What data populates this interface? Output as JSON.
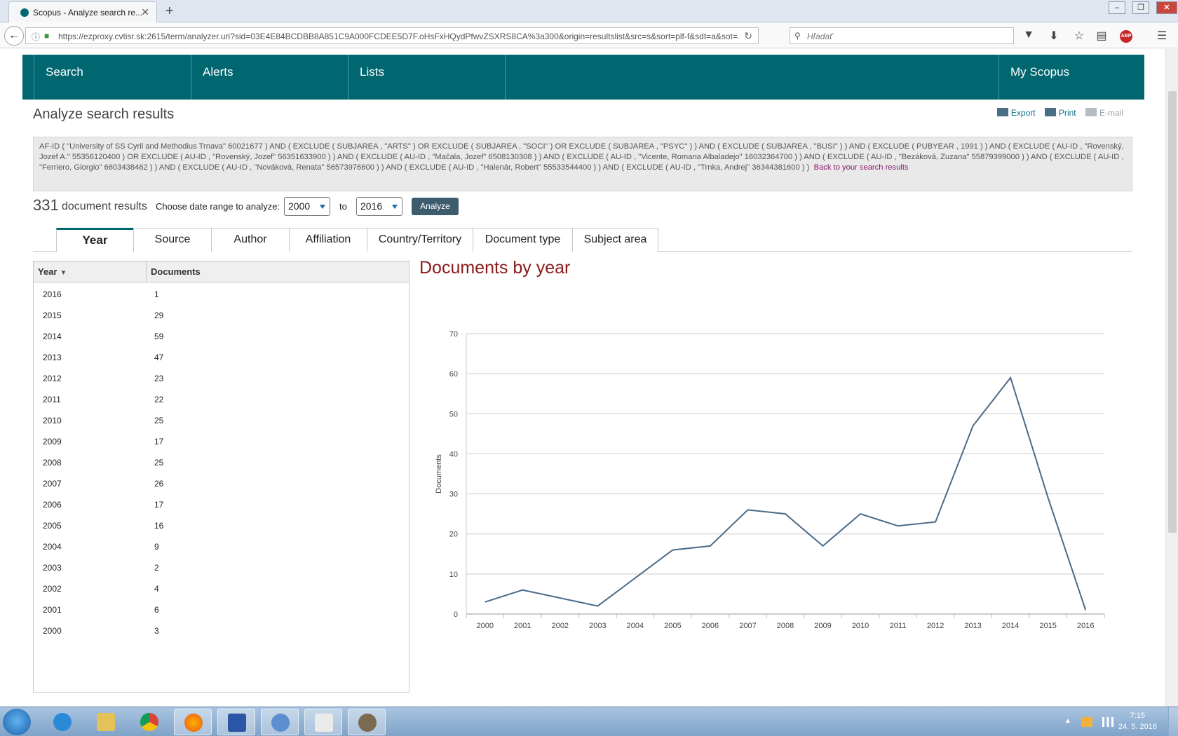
{
  "browser": {
    "tab_title": "Scopus - Analyze search re...",
    "tab_close": "✕",
    "new_tab": "+",
    "url": "https://ezproxy.cvtisr.sk:2615/term/analyzer.uri?sid=03E4E84BCDBB8A851C9A000FCDEE5D7F.oHsFxHQydPfwvZSXRS8CA%3a300&origin=resultslist&src=s&sort=plf-f&sdt=a&sot=a&se",
    "search_placeholder": "Hľadať",
    "window_controls": [
      "–",
      "❐",
      "✕"
    ]
  },
  "nav": {
    "items": [
      "Search",
      "Alerts",
      "Lists"
    ],
    "my_scopus": "My Scopus"
  },
  "page": {
    "heading": "Analyze search results",
    "actions": {
      "export": "Export",
      "print": "Print",
      "email": "E-mail"
    },
    "query_text": "AF-ID ( \"University of SS Cyril and Methodius Trnava\" 60021677 ) AND ( EXCLUDE ( SUBJAREA , \"ARTS\" ) OR EXCLUDE ( SUBJAREA , \"SOCI\" ) OR EXCLUDE ( SUBJAREA , \"PSYC\" ) ) AND ( EXCLUDE ( SUBJAREA , \"BUSI\" ) ) AND ( EXCLUDE ( PUBYEAR , 1991 ) ) AND ( EXCLUDE ( AU-ID , \"Rovenský, Jozef A.\" 55356120400 ) OR EXCLUDE ( AU-ID , \"Rovenský, Jozef\" 56351633900 ) ) AND ( EXCLUDE ( AU-ID , \"Mačala, Jozef\" 6508130308 ) ) AND ( EXCLUDE ( AU-ID , \"Vicente, Romana Albaladejo\" 16032364700 ) ) AND ( EXCLUDE ( AU-ID , \"Bezáková, Zuzana\" 55879399000 ) ) AND ( EXCLUDE ( AU-ID , \"Ferriero, Giorgio\" 6603438462 ) ) AND ( EXCLUDE ( AU-ID , \"Nováková, Renata\" 56573976600 ) ) AND ( EXCLUDE ( AU-ID , \"Halenár, Robert\" 55533544400 ) ) AND ( EXCLUDE ( AU-ID , \"Trnka, Andrej\" 36344381600 ) )",
    "back_link": "Back to your search results",
    "result_count": "331",
    "result_label": "document results",
    "range_label": "Choose date range to analyze:",
    "from_year": "2000",
    "to_label": "to",
    "to_year": "2016",
    "analyze_button": "Analyze",
    "tabs": [
      "Year",
      "Source",
      "Author",
      "Affiliation",
      "Country/Territory",
      "Document type",
      "Subject area"
    ],
    "active_tab": "Year"
  },
  "table": {
    "headers": {
      "year": "Year",
      "documents": "Documents"
    },
    "sort_icon": "sort-filter-icon",
    "rows": [
      {
        "year": "2016",
        "documents": "1"
      },
      {
        "year": "2015",
        "documents": "29"
      },
      {
        "year": "2014",
        "documents": "59"
      },
      {
        "year": "2013",
        "documents": "47"
      },
      {
        "year": "2012",
        "documents": "23"
      },
      {
        "year": "2011",
        "documents": "22"
      },
      {
        "year": "2010",
        "documents": "25"
      },
      {
        "year": "2009",
        "documents": "17"
      },
      {
        "year": "2008",
        "documents": "25"
      },
      {
        "year": "2007",
        "documents": "26"
      },
      {
        "year": "2006",
        "documents": "17"
      },
      {
        "year": "2005",
        "documents": "16"
      },
      {
        "year": "2004",
        "documents": "9"
      },
      {
        "year": "2003",
        "documents": "2"
      },
      {
        "year": "2002",
        "documents": "4"
      },
      {
        "year": "2001",
        "documents": "6"
      },
      {
        "year": "2000",
        "documents": "3"
      }
    ]
  },
  "chart_data": {
    "type": "line",
    "title": "Documents by year",
    "xlabel": "",
    "ylabel": "Documents",
    "x": [
      "2000",
      "2001",
      "2002",
      "2003",
      "2004",
      "2005",
      "2006",
      "2007",
      "2008",
      "2009",
      "2010",
      "2011",
      "2012",
      "2013",
      "2014",
      "2015",
      "2016"
    ],
    "values": [
      3,
      6,
      4,
      2,
      9,
      16,
      17,
      26,
      25,
      17,
      25,
      22,
      23,
      47,
      59,
      29,
      1
    ],
    "ylim": [
      0,
      70
    ],
    "yticks": [
      0,
      10,
      20,
      30,
      40,
      50,
      60,
      70
    ],
    "grid": true,
    "line_color": "#4a6a8a",
    "title_color": "#8b1a1a"
  },
  "taskbar": {
    "time": "7:15",
    "date": "24. 5. 2016"
  },
  "colors": {
    "brand": "#00666f",
    "analyze_button": "#3c5c6e",
    "link": "#0b6f8a"
  }
}
